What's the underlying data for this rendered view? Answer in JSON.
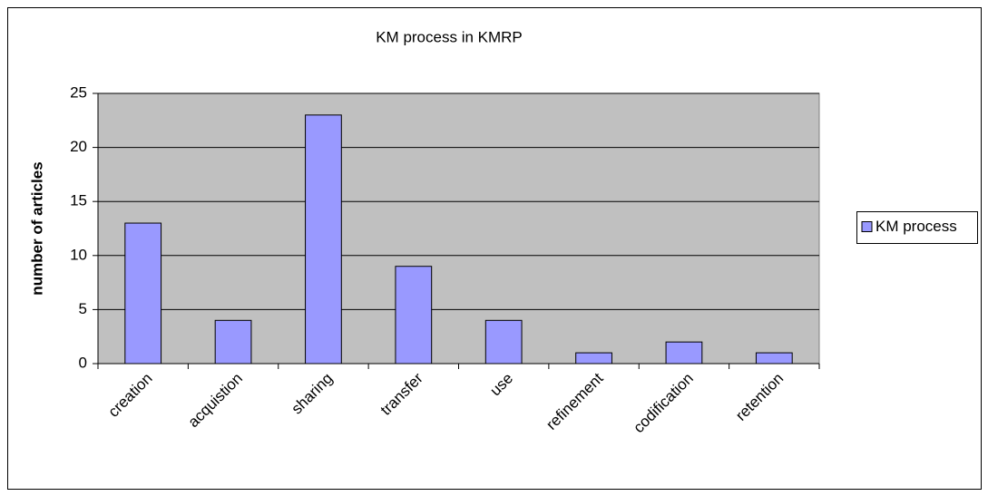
{
  "chart_data": {
    "type": "bar",
    "title": "KM process in KMRP",
    "y_label": "number of articles",
    "categories": [
      "creation",
      "acquistion",
      "sharing",
      "transfer",
      "use",
      "refinement",
      "codification",
      "retention"
    ],
    "series": [
      {
        "name": "KM process",
        "color": "#9999ff",
        "values": [
          13,
          4,
          23,
          9,
          4,
          1,
          2,
          1
        ]
      }
    ],
    "ylim": [
      0,
      25
    ],
    "yticks": [
      0,
      5,
      10,
      15,
      20,
      25
    ],
    "grid": true,
    "legend": "right"
  }
}
